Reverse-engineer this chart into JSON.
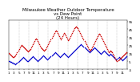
{
  "title": "Milwaukee Weather Outdoor Temperature\nvs Dew Point\n(24 Hours)",
  "temp_color": "#cc0000",
  "dew_color": "#0000cc",
  "black_color": "#000000",
  "background": "#ffffff",
  "n_points": 144,
  "ylim": [
    -5,
    57
  ],
  "ytick_vals": [
    55,
    45,
    35,
    25,
    15,
    5,
    -5
  ],
  "ytick_labels": [
    "55",
    "45",
    "35",
    "25",
    "15",
    "5",
    "-5"
  ],
  "xlim": [
    0,
    144
  ],
  "grid_positions": [
    12,
    24,
    36,
    48,
    60,
    72,
    84,
    96,
    108,
    120,
    132,
    144
  ],
  "xtick_positions": [
    0,
    6,
    12,
    18,
    24,
    30,
    36,
    42,
    48,
    54,
    60,
    66,
    72,
    78,
    84,
    90,
    96,
    102,
    108,
    114,
    120,
    126,
    132,
    138
  ],
  "xtick_labels": [
    "1",
    "3",
    "5",
    "7",
    "9",
    "11",
    "1",
    "3",
    "5",
    "7",
    "9",
    "11",
    "1",
    "3",
    "5",
    "7",
    "9",
    "11",
    "1",
    "3",
    "5",
    "7",
    "9",
    "11"
  ],
  "title_fontsize": 4.0,
  "tick_fontsize": 3.0,
  "marker_size": 1.2,
  "dew_x": [
    0,
    1,
    2,
    3,
    4,
    5,
    6,
    7,
    8,
    9,
    10,
    11,
    12,
    13,
    14,
    15,
    16,
    17,
    18,
    19,
    20,
    21,
    22,
    23,
    24,
    25,
    26,
    27,
    28,
    29,
    30,
    31,
    32,
    33,
    34,
    35,
    36,
    37,
    38,
    39,
    40,
    41,
    42,
    43,
    44,
    45,
    46,
    47,
    48,
    49,
    50,
    51,
    52,
    53,
    54,
    55,
    56,
    57,
    58,
    59,
    60,
    61,
    62,
    63,
    64,
    65,
    66,
    67,
    68,
    69,
    70,
    71,
    72,
    73,
    74,
    75,
    76,
    77,
    78,
    79,
    80,
    81,
    82,
    83,
    84,
    85,
    86,
    87,
    88,
    89,
    90,
    91,
    92,
    93,
    94,
    95,
    96,
    97,
    98,
    99,
    100,
    101,
    102,
    103,
    104,
    105,
    106,
    107,
    108,
    109,
    110,
    111,
    112,
    113,
    114,
    115,
    116,
    117,
    118,
    119,
    120,
    121,
    122,
    123,
    124,
    125,
    126,
    127,
    128,
    129,
    130,
    131,
    132,
    133,
    134,
    135,
    136,
    137,
    138,
    139,
    140,
    141,
    142,
    143
  ],
  "dew_y": [
    5,
    5,
    4,
    4,
    3,
    3,
    2,
    2,
    1,
    2,
    3,
    4,
    5,
    6,
    7,
    8,
    9,
    10,
    9,
    8,
    7,
    6,
    5,
    5,
    6,
    7,
    8,
    9,
    10,
    11,
    10,
    9,
    8,
    7,
    6,
    5,
    6,
    7,
    8,
    9,
    10,
    11,
    12,
    11,
    10,
    9,
    8,
    7,
    8,
    9,
    10,
    11,
    12,
    13,
    14,
    15,
    16,
    15,
    14,
    13,
    12,
    11,
    10,
    11,
    12,
    13,
    14,
    15,
    14,
    13,
    12,
    11,
    10,
    11,
    12,
    13,
    14,
    15,
    16,
    17,
    18,
    19,
    20,
    21,
    22,
    23,
    24,
    25,
    26,
    25,
    24,
    23,
    22,
    21,
    20,
    19,
    18,
    17,
    16,
    17,
    18,
    19,
    20,
    21,
    22,
    21,
    20,
    19,
    18,
    17,
    16,
    15,
    14,
    15,
    16,
    17,
    18,
    17,
    16,
    15,
    14,
    13,
    12,
    13,
    14,
    13,
    12,
    11,
    10,
    9,
    8,
    7,
    8,
    9,
    10,
    9,
    8,
    7,
    6,
    7,
    8,
    9,
    10,
    11
  ],
  "temp_x": [
    0,
    1,
    2,
    3,
    4,
    5,
    6,
    7,
    8,
    9,
    10,
    11,
    12,
    13,
    14,
    15,
    16,
    17,
    18,
    19,
    20,
    21,
    22,
    23,
    24,
    25,
    26,
    27,
    28,
    29,
    30,
    31,
    32,
    33,
    34,
    35,
    36,
    37,
    38,
    39,
    40,
    41,
    42,
    43,
    44,
    45,
    46,
    47,
    48,
    49,
    50,
    51,
    52,
    53,
    54,
    55,
    56,
    57,
    58,
    59,
    60,
    61,
    62,
    63,
    64,
    65,
    66,
    67,
    68,
    69,
    70,
    71,
    72,
    73,
    74,
    75,
    76,
    77,
    78,
    79,
    80,
    81,
    82,
    83,
    84,
    85,
    86,
    87,
    88,
    89,
    90,
    91,
    92,
    93,
    94,
    95,
    96,
    97,
    98,
    99,
    100,
    101,
    102,
    103,
    104,
    105,
    106,
    107,
    108,
    109,
    110,
    111,
    112,
    113,
    114,
    115,
    116,
    117,
    118,
    119,
    120,
    121,
    122,
    123,
    124,
    125,
    126,
    127,
    128,
    129,
    130,
    131,
    132,
    133,
    134,
    135,
    136,
    137,
    138,
    139,
    140,
    141,
    142,
    143
  ],
  "temp_y": [
    15,
    14,
    13,
    12,
    11,
    10,
    10,
    11,
    12,
    14,
    16,
    18,
    20,
    22,
    24,
    25,
    24,
    23,
    22,
    21,
    20,
    19,
    18,
    17,
    18,
    19,
    20,
    22,
    24,
    26,
    28,
    30,
    32,
    33,
    32,
    30,
    28,
    26,
    24,
    22,
    21,
    20,
    19,
    18,
    19,
    20,
    22,
    24,
    26,
    28,
    30,
    32,
    34,
    36,
    38,
    40,
    42,
    43,
    42,
    40,
    38,
    36,
    34,
    32,
    34,
    36,
    38,
    40,
    39,
    37,
    35,
    33,
    31,
    32,
    34,
    36,
    38,
    40,
    42,
    44,
    46,
    48,
    49,
    48,
    46,
    44,
    42,
    40,
    38,
    36,
    34,
    32,
    30,
    28,
    26,
    24,
    22,
    20,
    18,
    19,
    20,
    22,
    24,
    26,
    28,
    30,
    32,
    34,
    36,
    38,
    39,
    38,
    36,
    34,
    32,
    30,
    28,
    26,
    24,
    22,
    20,
    18,
    16,
    17,
    18,
    17,
    16,
    14,
    12,
    10,
    8,
    6,
    5,
    6,
    7,
    8,
    9,
    10,
    11,
    12,
    13,
    14,
    15,
    16
  ]
}
